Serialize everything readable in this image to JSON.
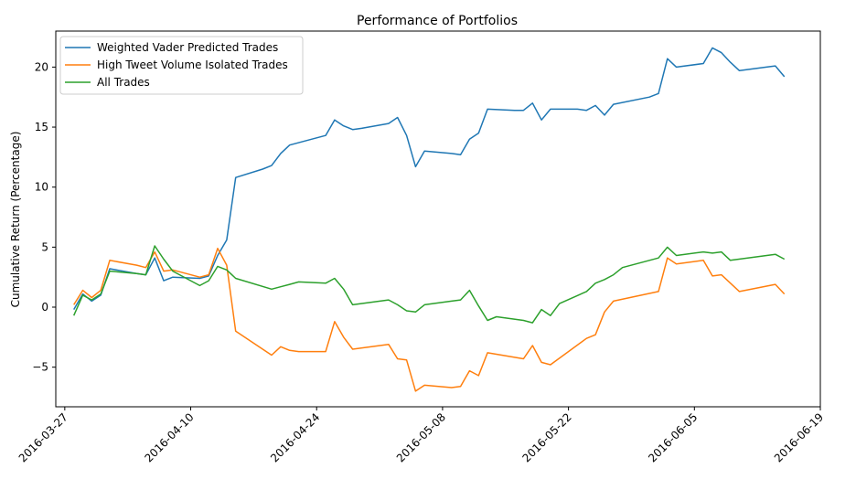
{
  "chart_data": {
    "type": "line",
    "title": "Performance of Portfolios",
    "xlabel": "",
    "ylabel": "Cumulative Return (Percentage)",
    "x_type": "date",
    "xlim": [
      "2016-03-26",
      "2016-06-19"
    ],
    "ylim": [
      -8.3,
      23.0
    ],
    "x_ticks": [
      "2016-03-27",
      "2016-04-10",
      "2016-04-24",
      "2016-05-08",
      "2016-05-22",
      "2016-06-05",
      "2016-06-19"
    ],
    "y_ticks": [
      -5,
      0,
      5,
      10,
      15,
      20
    ],
    "legend_position": "top-left",
    "grid": false,
    "series": [
      {
        "name": "Weighted Vader Predicted Trades",
        "color": "#1f77b4",
        "points": [
          [
            "2016-03-28",
            -0.2
          ],
          [
            "2016-03-29",
            1.1
          ],
          [
            "2016-03-30",
            0.5
          ],
          [
            "2016-03-31",
            1.0
          ],
          [
            "2016-04-01",
            3.2
          ],
          [
            "2016-04-04",
            2.8
          ],
          [
            "2016-04-05",
            2.7
          ],
          [
            "2016-04-06",
            4.1
          ],
          [
            "2016-04-07",
            2.2
          ],
          [
            "2016-04-08",
            2.5
          ],
          [
            "2016-04-11",
            2.4
          ],
          [
            "2016-04-12",
            2.6
          ],
          [
            "2016-04-13",
            4.3
          ],
          [
            "2016-04-14",
            5.6
          ],
          [
            "2016-04-15",
            10.8
          ],
          [
            "2016-04-18",
            11.5
          ],
          [
            "2016-04-19",
            11.8
          ],
          [
            "2016-04-20",
            12.8
          ],
          [
            "2016-04-21",
            13.5
          ],
          [
            "2016-04-25",
            14.3
          ],
          [
            "2016-04-26",
            15.6
          ],
          [
            "2016-04-27",
            15.1
          ],
          [
            "2016-04-28",
            14.8
          ],
          [
            "2016-04-29",
            14.9
          ],
          [
            "2016-05-02",
            15.3
          ],
          [
            "2016-05-03",
            15.8
          ],
          [
            "2016-05-04",
            14.3
          ],
          [
            "2016-05-05",
            11.7
          ],
          [
            "2016-05-06",
            13.0
          ],
          [
            "2016-05-09",
            12.8
          ],
          [
            "2016-05-10",
            12.7
          ],
          [
            "2016-05-11",
            14.0
          ],
          [
            "2016-05-12",
            14.5
          ],
          [
            "2016-05-13",
            16.5
          ],
          [
            "2016-05-16",
            16.4
          ],
          [
            "2016-05-17",
            16.4
          ],
          [
            "2016-05-18",
            17.0
          ],
          [
            "2016-05-19",
            15.6
          ],
          [
            "2016-05-20",
            16.5
          ],
          [
            "2016-05-23",
            16.5
          ],
          [
            "2016-05-24",
            16.4
          ],
          [
            "2016-05-25",
            16.8
          ],
          [
            "2016-05-26",
            16.0
          ],
          [
            "2016-05-27",
            16.9
          ],
          [
            "2016-05-31",
            17.5
          ],
          [
            "2016-06-01",
            17.8
          ],
          [
            "2016-06-02",
            20.7
          ],
          [
            "2016-06-03",
            20.0
          ],
          [
            "2016-06-06",
            20.3
          ],
          [
            "2016-06-07",
            21.6
          ],
          [
            "2016-06-08",
            21.2
          ],
          [
            "2016-06-09",
            20.4
          ],
          [
            "2016-06-10",
            19.7
          ],
          [
            "2016-06-13",
            20.0
          ],
          [
            "2016-06-14",
            20.1
          ],
          [
            "2016-06-15",
            19.2
          ]
        ]
      },
      {
        "name": "High Tweet Volume Isolated Trades",
        "color": "#ff7f0e",
        "points": [
          [
            "2016-03-28",
            0.2
          ],
          [
            "2016-03-29",
            1.4
          ],
          [
            "2016-03-30",
            0.8
          ],
          [
            "2016-03-31",
            1.4
          ],
          [
            "2016-04-01",
            3.9
          ],
          [
            "2016-04-04",
            3.5
          ],
          [
            "2016-04-05",
            3.3
          ],
          [
            "2016-04-06",
            4.6
          ],
          [
            "2016-04-07",
            3.0
          ],
          [
            "2016-04-08",
            3.1
          ],
          [
            "2016-04-11",
            2.5
          ],
          [
            "2016-04-12",
            2.7
          ],
          [
            "2016-04-13",
            4.9
          ],
          [
            "2016-04-14",
            3.5
          ],
          [
            "2016-04-15",
            -2.0
          ],
          [
            "2016-04-19",
            -4.0
          ],
          [
            "2016-04-20",
            -3.3
          ],
          [
            "2016-04-21",
            -3.6
          ],
          [
            "2016-04-22",
            -3.7
          ],
          [
            "2016-04-25",
            -3.7
          ],
          [
            "2016-04-26",
            -1.2
          ],
          [
            "2016-04-27",
            -2.5
          ],
          [
            "2016-04-28",
            -3.5
          ],
          [
            "2016-05-02",
            -3.1
          ],
          [
            "2016-05-03",
            -4.3
          ],
          [
            "2016-05-04",
            -4.4
          ],
          [
            "2016-05-05",
            -7.0
          ],
          [
            "2016-05-06",
            -6.5
          ],
          [
            "2016-05-09",
            -6.7
          ],
          [
            "2016-05-10",
            -6.6
          ],
          [
            "2016-05-11",
            -5.3
          ],
          [
            "2016-05-12",
            -5.7
          ],
          [
            "2016-05-13",
            -3.8
          ],
          [
            "2016-05-17",
            -4.3
          ],
          [
            "2016-05-18",
            -3.2
          ],
          [
            "2016-05-19",
            -4.6
          ],
          [
            "2016-05-20",
            -4.8
          ],
          [
            "2016-05-24",
            -2.6
          ],
          [
            "2016-05-25",
            -2.3
          ],
          [
            "2016-05-26",
            -0.4
          ],
          [
            "2016-05-27",
            0.5
          ],
          [
            "2016-06-01",
            1.3
          ],
          [
            "2016-06-02",
            4.1
          ],
          [
            "2016-06-03",
            3.6
          ],
          [
            "2016-06-06",
            3.9
          ],
          [
            "2016-06-07",
            2.6
          ],
          [
            "2016-06-08",
            2.7
          ],
          [
            "2016-06-10",
            1.3
          ],
          [
            "2016-06-14",
            1.9
          ],
          [
            "2016-06-15",
            1.1
          ]
        ]
      },
      {
        "name": "All Trades",
        "color": "#2ca02c",
        "points": [
          [
            "2016-03-28",
            -0.7
          ],
          [
            "2016-03-29",
            1.0
          ],
          [
            "2016-03-30",
            0.6
          ],
          [
            "2016-03-31",
            1.1
          ],
          [
            "2016-04-01",
            3.0
          ],
          [
            "2016-04-04",
            2.8
          ],
          [
            "2016-04-05",
            2.7
          ],
          [
            "2016-04-06",
            5.1
          ],
          [
            "2016-04-07",
            4.0
          ],
          [
            "2016-04-08",
            3.0
          ],
          [
            "2016-04-11",
            1.8
          ],
          [
            "2016-04-12",
            2.2
          ],
          [
            "2016-04-13",
            3.4
          ],
          [
            "2016-04-14",
            3.1
          ],
          [
            "2016-04-15",
            2.4
          ],
          [
            "2016-04-19",
            1.5
          ],
          [
            "2016-04-20",
            1.7
          ],
          [
            "2016-04-21",
            1.9
          ],
          [
            "2016-04-22",
            2.1
          ],
          [
            "2016-04-25",
            2.0
          ],
          [
            "2016-04-26",
            2.4
          ],
          [
            "2016-04-27",
            1.5
          ],
          [
            "2016-04-28",
            0.2
          ],
          [
            "2016-05-02",
            0.6
          ],
          [
            "2016-05-03",
            0.2
          ],
          [
            "2016-05-04",
            -0.3
          ],
          [
            "2016-05-05",
            -0.4
          ],
          [
            "2016-05-06",
            0.2
          ],
          [
            "2016-05-09",
            0.5
          ],
          [
            "2016-05-10",
            0.6
          ],
          [
            "2016-05-11",
            1.4
          ],
          [
            "2016-05-12",
            0.1
          ],
          [
            "2016-05-13",
            -1.1
          ],
          [
            "2016-05-14",
            -0.8
          ],
          [
            "2016-05-17",
            -1.1
          ],
          [
            "2016-05-18",
            -1.3
          ],
          [
            "2016-05-19",
            -0.2
          ],
          [
            "2016-05-20",
            -0.7
          ],
          [
            "2016-05-21",
            0.3
          ],
          [
            "2016-05-24",
            1.3
          ],
          [
            "2016-05-25",
            2.0
          ],
          [
            "2016-05-26",
            2.3
          ],
          [
            "2016-05-27",
            2.7
          ],
          [
            "2016-05-28",
            3.3
          ],
          [
            "2016-06-01",
            4.1
          ],
          [
            "2016-06-02",
            5.0
          ],
          [
            "2016-06-03",
            4.3
          ],
          [
            "2016-06-06",
            4.6
          ],
          [
            "2016-06-07",
            4.5
          ],
          [
            "2016-06-08",
            4.6
          ],
          [
            "2016-06-09",
            3.9
          ],
          [
            "2016-06-14",
            4.4
          ],
          [
            "2016-06-15",
            4.0
          ]
        ]
      }
    ]
  }
}
